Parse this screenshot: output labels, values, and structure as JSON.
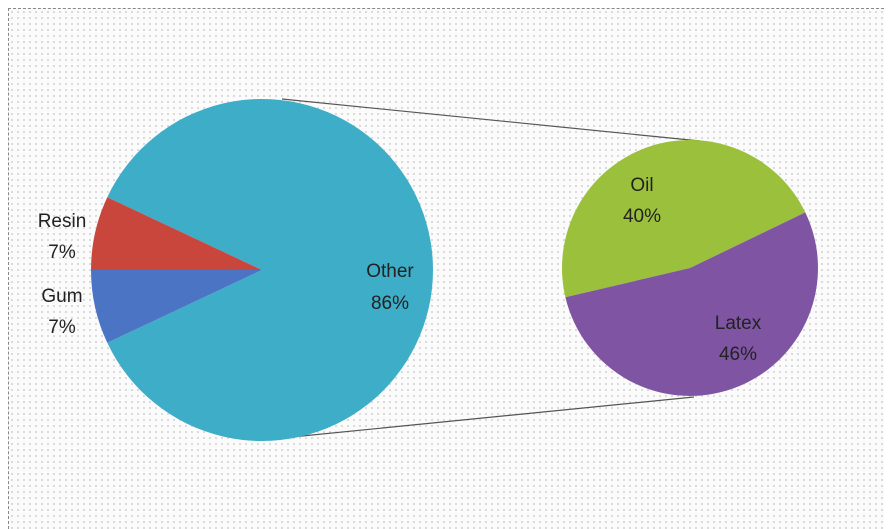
{
  "chart_data": [
    {
      "type": "pie",
      "slices": [
        {
          "label": "Other",
          "value_label": "86%",
          "value": 86,
          "color": "#3eadc7"
        },
        {
          "label": "Resin",
          "value_label": "7%",
          "value": 7,
          "color": "#c9463d"
        },
        {
          "label": "Gum",
          "value_label": "7%",
          "value": 7,
          "color": "#4b74c4"
        }
      ]
    },
    {
      "type": "pie",
      "slices": [
        {
          "label": "Oil",
          "value_label": "40%",
          "value": 40,
          "color": "#9bc13c"
        },
        {
          "label": "Latex",
          "value_label": "46%",
          "value": 46,
          "color": "#7f55a3"
        }
      ]
    }
  ]
}
